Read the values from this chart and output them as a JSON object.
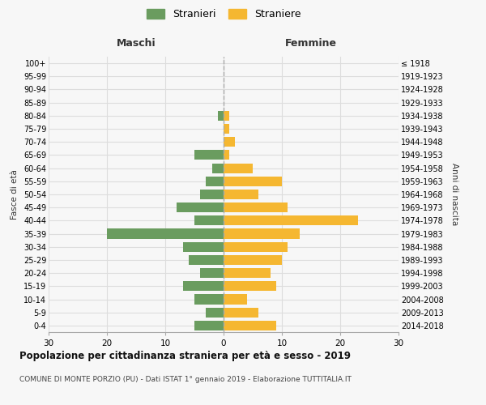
{
  "age_groups": [
    "0-4",
    "5-9",
    "10-14",
    "15-19",
    "20-24",
    "25-29",
    "30-34",
    "35-39",
    "40-44",
    "45-49",
    "50-54",
    "55-59",
    "60-64",
    "65-69",
    "70-74",
    "75-79",
    "80-84",
    "85-89",
    "90-94",
    "95-99",
    "100+"
  ],
  "birth_years": [
    "2014-2018",
    "2009-2013",
    "2004-2008",
    "1999-2003",
    "1994-1998",
    "1989-1993",
    "1984-1988",
    "1979-1983",
    "1974-1978",
    "1969-1973",
    "1964-1968",
    "1959-1963",
    "1954-1958",
    "1949-1953",
    "1944-1948",
    "1939-1943",
    "1934-1938",
    "1929-1933",
    "1924-1928",
    "1919-1923",
    "≤ 1918"
  ],
  "maschi": [
    5,
    3,
    5,
    7,
    4,
    6,
    7,
    20,
    5,
    8,
    4,
    3,
    2,
    5,
    0,
    0,
    1,
    0,
    0,
    0,
    0
  ],
  "femmine": [
    9,
    6,
    4,
    9,
    8,
    10,
    11,
    13,
    23,
    11,
    6,
    10,
    5,
    1,
    2,
    1,
    1,
    0,
    0,
    0,
    0
  ],
  "color_maschi": "#6a9c5f",
  "color_femmine": "#f5b731",
  "xlim": 30,
  "title": "Popolazione per cittadinanza straniera per età e sesso - 2019",
  "subtitle": "COMUNE DI MONTE PORZIO (PU) - Dati ISTAT 1° gennaio 2019 - Elaborazione TUTTITALIA.IT",
  "label_maschi": "Stranieri",
  "label_femmine": "Straniere",
  "xlabel_left": "Maschi",
  "xlabel_right": "Femmine",
  "ylabel_left": "Fasce di età",
  "ylabel_right": "Anni di nascita",
  "bg_color": "#f7f7f7",
  "grid_color": "#dddddd"
}
